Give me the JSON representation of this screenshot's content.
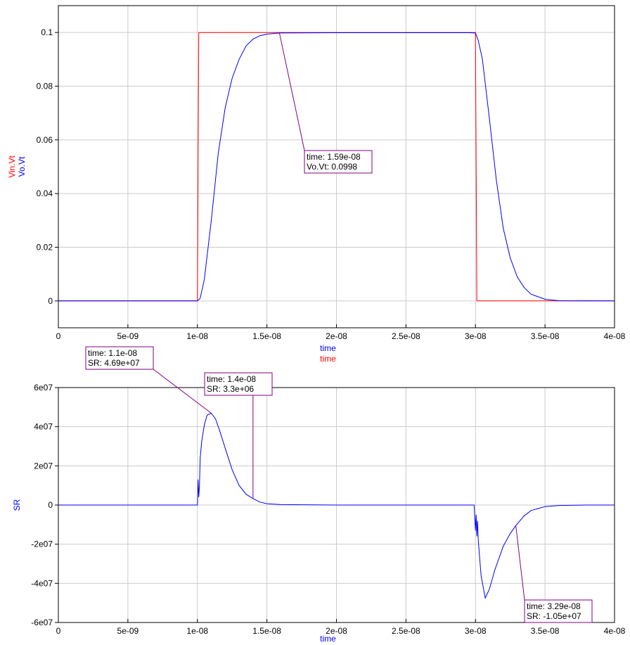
{
  "colors": {
    "red": "#ff0000",
    "blue": "#0000ff",
    "marker": "#800080",
    "grid": "#cccccc"
  },
  "chart_data": [
    {
      "type": "line",
      "xlim": [
        0,
        4e-08
      ],
      "ylim": [
        -0.01,
        0.11
      ],
      "x_ticks": [
        0,
        5e-09,
        1e-08,
        1.5e-08,
        2e-08,
        2.5e-08,
        3e-08,
        3.5e-08,
        4e-08
      ],
      "x_tick_labels": [
        "0",
        "5e-09",
        "1e-08",
        "1.5e-08",
        "2e-08",
        "2.5e-08",
        "3e-08",
        "3.5e-08",
        "4e-08"
      ],
      "y_ticks": [
        0,
        0.02,
        0.04,
        0.06,
        0.08,
        0.1
      ],
      "y_tick_labels": [
        "0",
        "0.02",
        "0.04",
        "0.06",
        "0.08",
        "0.1"
      ],
      "xlabels": [
        {
          "text": "time",
          "color": "#0000ff"
        },
        {
          "text": "time",
          "color": "#ff0000"
        }
      ],
      "ylabels": [
        {
          "text": "Vin.Vt",
          "color": "#ff0000"
        },
        {
          "text": "Vo.Vt",
          "color": "#0000ff"
        }
      ],
      "grid": true,
      "series": [
        {
          "name": "Vin.Vt",
          "color": "#ff0000",
          "x": [
            0,
            1e-08,
            1.01e-08,
            3e-08,
            3.01e-08,
            4e-08
          ],
          "y": [
            0,
            0,
            0.1,
            0.1,
            0,
            0
          ]
        },
        {
          "name": "Vo.Vt",
          "color": "#0000ff",
          "x": [
            0,
            1e-08,
            1.02e-08,
            1.05e-08,
            1.1e-08,
            1.15e-08,
            1.2e-08,
            1.25e-08,
            1.3e-08,
            1.35e-08,
            1.4e-08,
            1.45e-08,
            1.5e-08,
            1.59e-08,
            2e-08,
            2.95e-08,
            3e-08,
            3.02e-08,
            3.05e-08,
            3.1e-08,
            3.15e-08,
            3.2e-08,
            3.25e-08,
            3.3e-08,
            3.35e-08,
            3.4e-08,
            3.5e-08,
            3.6e-08,
            4e-08
          ],
          "y": [
            0,
            0,
            0.001,
            0.008,
            0.03,
            0.055,
            0.072,
            0.083,
            0.09,
            0.095,
            0.0975,
            0.0988,
            0.0994,
            0.0998,
            0.0999,
            0.0999,
            0.0998,
            0.097,
            0.09,
            0.068,
            0.045,
            0.027,
            0.016,
            0.009,
            0.005,
            0.0025,
            0.0006,
            0.0001,
            0
          ]
        }
      ],
      "markers": [
        {
          "x": 1.59e-08,
          "y": 0.0998,
          "lines": [
            "time: 1.59e-08",
            "Vo.Vt: 0.0998"
          ]
        }
      ]
    },
    {
      "type": "line",
      "xlim": [
        0,
        4e-08
      ],
      "ylim": [
        -60000000.0,
        60000000.0
      ],
      "x_ticks": [
        0,
        5e-09,
        1e-08,
        1.5e-08,
        2e-08,
        2.5e-08,
        3e-08,
        3.5e-08,
        4e-08
      ],
      "x_tick_labels": [
        "0",
        "5e-09",
        "1e-08",
        "1.5e-08",
        "2e-08",
        "2.5e-08",
        "3e-08",
        "3.5e-08",
        "4e-08"
      ],
      "y_ticks": [
        -60000000.0,
        -40000000.0,
        -20000000.0,
        0,
        20000000.0,
        40000000.0,
        60000000.0
      ],
      "y_tick_labels": [
        "-6e07",
        "-4e07",
        "-2e07",
        "0",
        "2e07",
        "4e07",
        "6e07"
      ],
      "xlabels": [
        {
          "text": "time",
          "color": "#0000ff"
        }
      ],
      "ylabels": [
        {
          "text": "SR",
          "color": "#0000ff"
        }
      ],
      "grid": true,
      "series": [
        {
          "name": "SR",
          "color": "#0000ff",
          "x": [
            0,
            1e-08,
            1.005e-08,
            1.01e-08,
            1.015e-08,
            1.02e-08,
            1.03e-08,
            1.05e-08,
            1.07e-08,
            1.1e-08,
            1.13e-08,
            1.16e-08,
            1.2e-08,
            1.25e-08,
            1.3e-08,
            1.35e-08,
            1.4e-08,
            1.45e-08,
            1.5e-08,
            1.6e-08,
            2e-08,
            2.99e-08,
            3e-08,
            3.005e-08,
            3.01e-08,
            3.015e-08,
            3.02e-08,
            3.04e-08,
            3.07e-08,
            3.1e-08,
            3.14e-08,
            3.2e-08,
            3.25e-08,
            3.29e-08,
            3.35e-08,
            3.4e-08,
            3.5e-08,
            3.6e-08,
            3.8e-08,
            4e-08
          ],
          "y": [
            0,
            0,
            13000000.0,
            4000000.0,
            10000000.0,
            24000000.0,
            32000000.0,
            41000000.0,
            46000000.0,
            46900000.0,
            44000000.0,
            38000000.0,
            29000000.0,
            18000000.0,
            10000000.0,
            5500000.0,
            3300000.0,
            1500000.0,
            700000.0,
            200000.0,
            0,
            0,
            -13000000.0,
            -5000000.0,
            -16000000.0,
            -8000000.0,
            -18000000.0,
            -36000000.0,
            -47500000.0,
            -43000000.0,
            -33000000.0,
            -21000000.0,
            -14500000.0,
            -10500000.0,
            -5500000.0,
            -2800000.0,
            -800000.0,
            -200000.0,
            0,
            0
          ]
        }
      ],
      "markers": [
        {
          "x": 1.1e-08,
          "y": 46900000.0,
          "lines": [
            "time: 1.1e-08",
            "SR: 4.69e+07"
          ]
        },
        {
          "x": 1.4e-08,
          "y": 3300000.0,
          "lines": [
            "time: 1.4e-08",
            "SR: 3.3e+06"
          ]
        },
        {
          "x": 3.29e-08,
          "y": -10500000.0,
          "lines": [
            "time: 3.29e-08",
            "SR: -1.05e+07"
          ]
        }
      ]
    }
  ]
}
